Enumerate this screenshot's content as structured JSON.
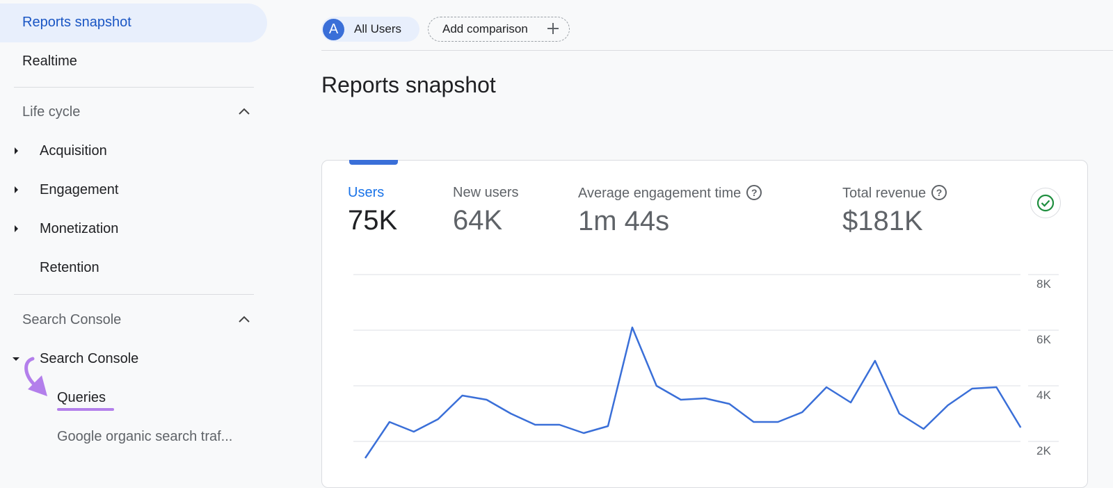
{
  "sidebar": {
    "active": "Reports snapshot",
    "realtime": "Realtime",
    "lifecycle": {
      "title": "Life cycle",
      "items": [
        "Acquisition",
        "Engagement",
        "Monetization",
        "Retention"
      ]
    },
    "search_console": {
      "title": "Search Console",
      "group": "Search Console",
      "items": [
        "Queries",
        "Google organic search traf..."
      ]
    }
  },
  "header": {
    "segment_avatar": "A",
    "segment_label": "All Users",
    "add_comparison": "Add comparison",
    "page_title": "Reports snapshot"
  },
  "metrics": [
    {
      "label": "Users",
      "value": "75K",
      "active": true
    },
    {
      "label": "New users",
      "value": "64K"
    },
    {
      "label": "Average engagement time",
      "value": "1m 44s",
      "help": true
    },
    {
      "label": "Total revenue",
      "value": "$181K",
      "help": true
    }
  ],
  "colors": {
    "accent": "#1a73e8",
    "line": "#3a6fd8",
    "annotation": "#b37feb",
    "check": "#1e8e3e"
  },
  "chart_data": {
    "type": "line",
    "y_ticks": [
      "8K",
      "6K",
      "4K",
      "2K"
    ],
    "y_axis_position": "right",
    "grid": true,
    "values": [
      1.4,
      2.7,
      2.35,
      2.8,
      3.65,
      3.5,
      3.0,
      2.6,
      2.6,
      2.3,
      2.55,
      6.1,
      4.0,
      3.5,
      3.55,
      3.35,
      2.7,
      2.7,
      3.05,
      3.95,
      3.4,
      4.9,
      3.0,
      2.45,
      3.3,
      3.9,
      3.95,
      2.5
    ],
    "unit": "K"
  }
}
